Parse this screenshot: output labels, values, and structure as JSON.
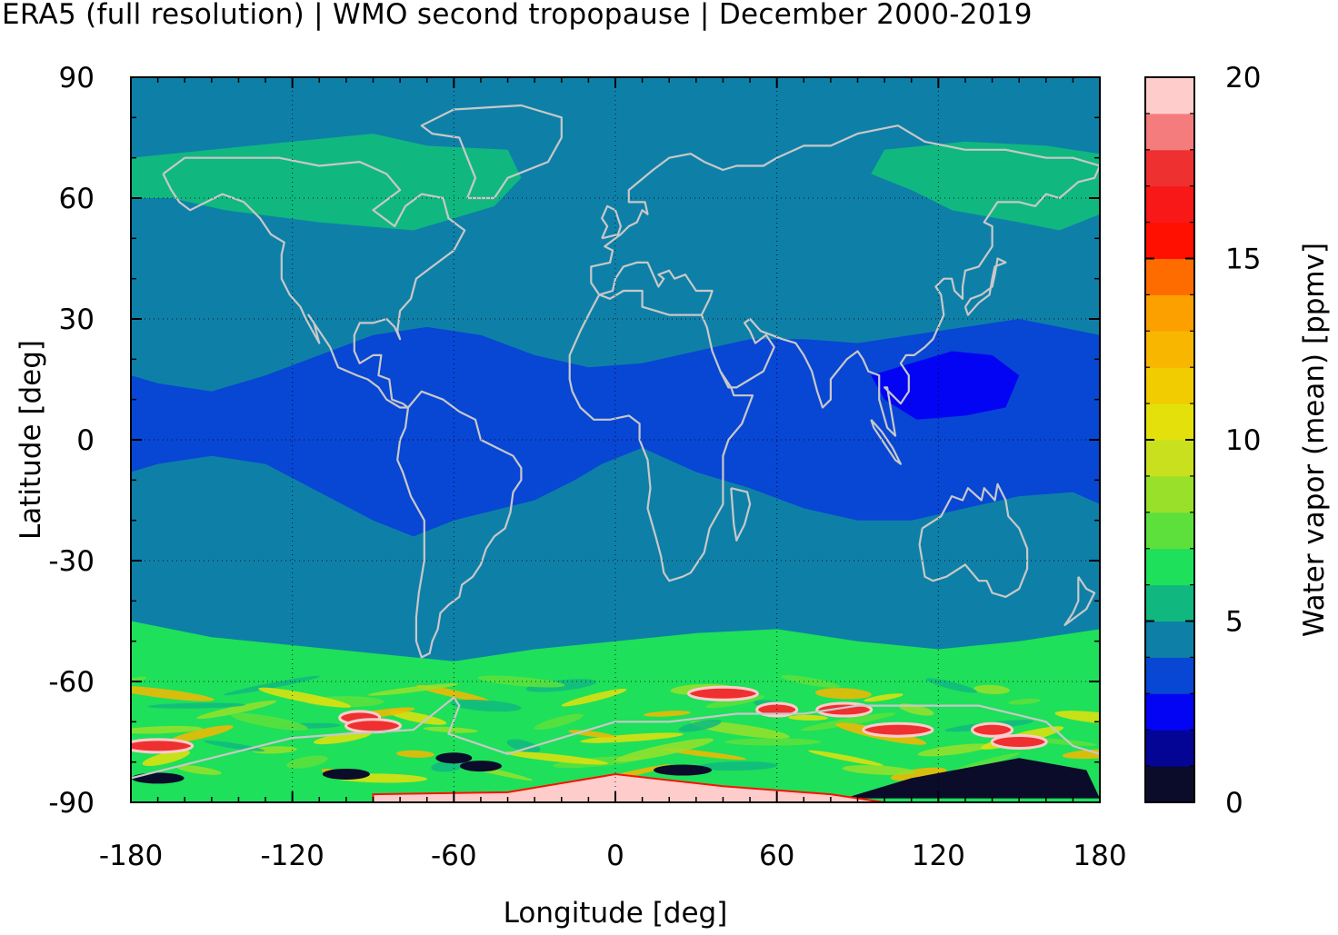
{
  "title": "ERA5 (full resolution) | WMO second tropopause | December 2000-2019",
  "chart_data": {
    "type": "heatmap",
    "title": "ERA5 (full resolution) | WMO second tropopause | December 2000-2019",
    "xlabel": "Longitude [deg]",
    "ylabel": "Latitude [deg]",
    "colorbar_label": "Water vapor (mean) [ppmv]",
    "xlim": [
      -180,
      180
    ],
    "ylim": [
      -90,
      90
    ],
    "clim": [
      0,
      20
    ],
    "x_ticks": [
      "-180",
      "-120",
      "-60",
      "0",
      "60",
      "120",
      "180"
    ],
    "y_ticks": [
      "90",
      "60",
      "30",
      "0",
      "-30",
      "-60",
      "-90"
    ],
    "colorbar_ticks": [
      "20",
      "15",
      "10",
      "5",
      "0"
    ],
    "grid": true,
    "colorbar_levels": [
      {
        "from": 0,
        "to": 1,
        "color": "#0b0b2a"
      },
      {
        "from": 1,
        "to": 2,
        "color": "#050595"
      },
      {
        "from": 2,
        "to": 3,
        "color": "#0404f4"
      },
      {
        "from": 3,
        "to": 4,
        "color": "#0846d4"
      },
      {
        "from": 4,
        "to": 5,
        "color": "#0e80a8"
      },
      {
        "from": 5,
        "to": 6,
        "color": "#10b880"
      },
      {
        "from": 6,
        "to": 7,
        "color": "#1ee05a"
      },
      {
        "from": 7,
        "to": 8,
        "color": "#5ee03c"
      },
      {
        "from": 8,
        "to": 9,
        "color": "#98e02a"
      },
      {
        "from": 9,
        "to": 10,
        "color": "#c8e01e"
      },
      {
        "from": 10,
        "to": 11,
        "color": "#e4e00c"
      },
      {
        "from": 11,
        "to": 12,
        "color": "#f0cc00"
      },
      {
        "from": 12,
        "to": 13,
        "color": "#f8b600"
      },
      {
        "from": 13,
        "to": 14,
        "color": "#fca000"
      },
      {
        "from": 14,
        "to": 15,
        "color": "#fe6c00"
      },
      {
        "from": 15,
        "to": 16,
        "color": "#ff1000"
      },
      {
        "from": 16,
        "to": 17,
        "color": "#f81818"
      },
      {
        "from": 17,
        "to": 18,
        "color": "#ef3030"
      },
      {
        "from": 18,
        "to": 19,
        "color": "#f47c7c"
      },
      {
        "from": 19,
        "to": 20,
        "color": "#ffcccc"
      }
    ],
    "regions": [
      {
        "name": "background",
        "value": 4.5
      },
      {
        "name": "arctic-north-america",
        "value": 5.5
      },
      {
        "name": "arctic-siberia",
        "value": 5.5
      },
      {
        "name": "tropical-band",
        "value": 3.5
      },
      {
        "name": "west-pacific-minimum",
        "value": 2.5
      },
      {
        "name": "southern-ocean-band",
        "value": 6.5
      },
      {
        "name": "antarctic-high",
        "value": 19.5
      },
      {
        "name": "antarctic-dry",
        "value": 0.5
      }
    ],
    "colors": {
      "coastline": "#c8c8c8",
      "grid": "#000000"
    }
  }
}
